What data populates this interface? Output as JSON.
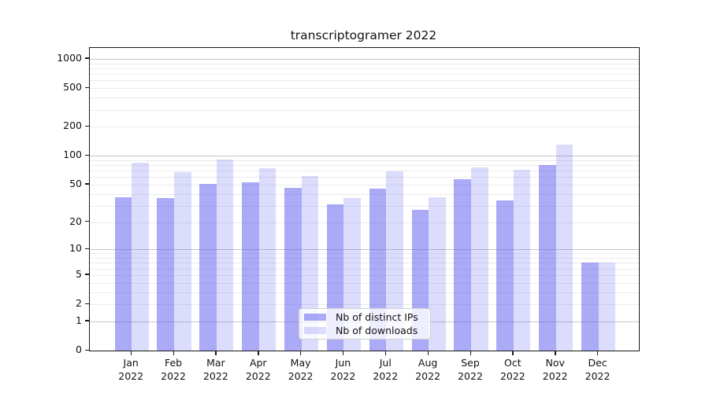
{
  "chart_data": {
    "type": "bar",
    "title": "transcriptogramer 2022",
    "categories": [
      "Jan 2022",
      "Feb 2022",
      "Mar 2022",
      "Apr 2022",
      "May 2022",
      "Jun 2022",
      "Jul 2022",
      "Aug 2022",
      "Sep 2022",
      "Oct 2022",
      "Nov 2022",
      "Dec 2022"
    ],
    "series": [
      {
        "name": "Nb of distinct IPs",
        "color": "rgba(92,92,240,0.52)",
        "values": [
          37,
          36,
          51,
          53,
          46,
          31,
          45,
          27,
          57,
          34,
          80,
          7
        ]
      },
      {
        "name": "Nb of downloads",
        "color": "rgba(92,92,240,0.21)",
        "values": [
          85,
          67,
          91,
          74,
          61,
          36,
          69,
          37,
          76,
          72,
          130,
          7
        ]
      }
    ],
    "yscale": "symlog (position = log10(1+value))",
    "yticks": [
      0,
      1,
      2,
      5,
      10,
      20,
      50,
      100,
      200,
      500,
      1000
    ],
    "minor_gridlines": [
      2,
      3,
      4,
      5,
      6,
      7,
      8,
      9,
      20,
      30,
      40,
      50,
      60,
      70,
      80,
      90,
      200,
      300,
      400,
      500,
      600,
      700,
      800,
      900
    ],
    "major_gridlines": [
      1,
      10,
      100,
      1000
    ],
    "ylim": [
      0,
      1280
    ],
    "xlabel": "",
    "ylabel": "",
    "grid": "horizontal only",
    "legend_position": "lower center",
    "colors": {
      "bar_distinct_ips": "rgba(92,92,240,0.52)",
      "bar_downloads": "rgba(92,92,240,0.21)",
      "major_grid": "#c6c6c6",
      "minor_grid": "#ebebeb",
      "axis_frame": "#1a1a1a",
      "text": "#111111",
      "legend_bg": "rgba(255,255,255,0.8)",
      "legend_border": "#cfcfcf"
    }
  }
}
